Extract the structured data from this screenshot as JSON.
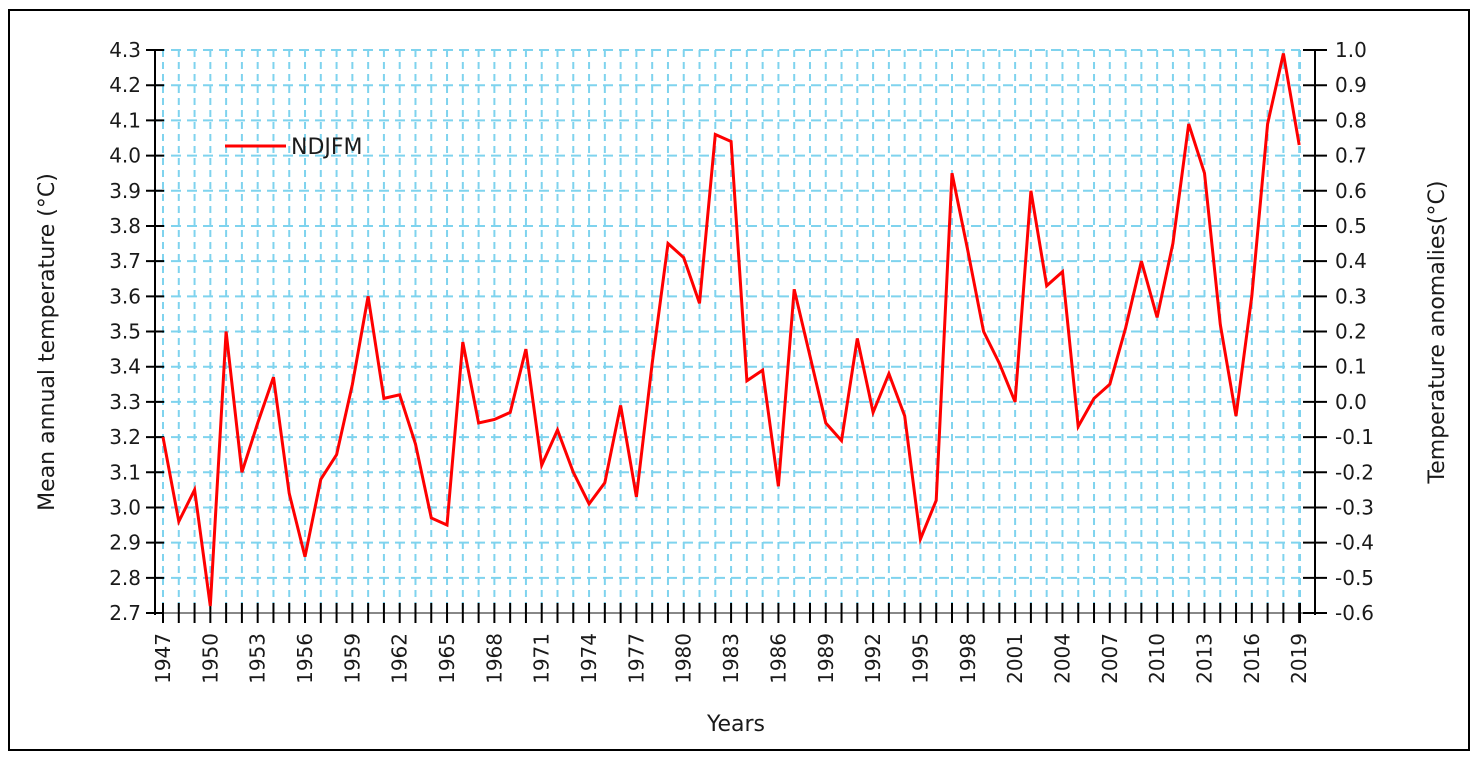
{
  "chart_data": {
    "type": "line",
    "title": "",
    "xlabel": "Years",
    "ylabel": "Mean annual temperature (°C)",
    "y2label": "Temperature anomalies(°C)",
    "ylim": [
      2.7,
      4.3
    ],
    "y2lim": [
      -0.6,
      1.0
    ],
    "xlim": [
      1947,
      2020
    ],
    "grid": true,
    "legend_position": "top-left",
    "y_ticks": [
      "4.3",
      "4.2",
      "4.1",
      "4.0",
      "3.9",
      "3.8",
      "3.7",
      "3.6",
      "3.5",
      "3.4",
      "3.3",
      "3.2",
      "3.1",
      "3.0",
      "2.9",
      "2.8",
      "2.7"
    ],
    "y2_ticks": [
      "1.0",
      "0.9",
      "0.8",
      "0.7",
      "0.6",
      "0.5",
      "0.4",
      "0.3",
      "0.2",
      "0.1",
      "0.0",
      "-0.1",
      "-0.2",
      "-0.3",
      "-0.4",
      "-0.5",
      "-0.6"
    ],
    "x_tick_labels": [
      "1947",
      "1950",
      "1953",
      "1956",
      "1959",
      "1962",
      "1965",
      "1968",
      "1971",
      "1974",
      "1977",
      "1980",
      "1983",
      "1986",
      "1989",
      "1992",
      "1995",
      "1998",
      "2001",
      "2004",
      "2007",
      "2010",
      "2013",
      "2016",
      "2019"
    ],
    "x": [
      1947,
      1948,
      1949,
      1950,
      1951,
      1952,
      1953,
      1954,
      1955,
      1956,
      1957,
      1958,
      1959,
      1960,
      1961,
      1962,
      1963,
      1964,
      1965,
      1966,
      1967,
      1968,
      1969,
      1970,
      1971,
      1972,
      1973,
      1974,
      1975,
      1976,
      1977,
      1978,
      1979,
      1980,
      1981,
      1982,
      1983,
      1984,
      1985,
      1986,
      1987,
      1988,
      1989,
      1990,
      1991,
      1992,
      1993,
      1994,
      1995,
      1996,
      1997,
      1998,
      1999,
      2000,
      2001,
      2002,
      2003,
      2004,
      2005,
      2006,
      2007,
      2008,
      2009,
      2010,
      2011,
      2012,
      2013,
      2014,
      2015,
      2016,
      2017,
      2018,
      2019
    ],
    "series": [
      {
        "name": "NDJFM",
        "color": "#ff0000",
        "values": [
          3.2,
          2.96,
          3.05,
          2.72,
          3.5,
          3.1,
          3.24,
          3.37,
          3.04,
          2.86,
          3.08,
          3.15,
          3.35,
          3.6,
          3.31,
          3.32,
          3.18,
          2.97,
          2.95,
          3.47,
          3.24,
          3.25,
          3.27,
          3.45,
          3.12,
          3.22,
          3.1,
          3.01,
          3.07,
          3.29,
          3.03,
          3.41,
          3.75,
          3.71,
          3.58,
          4.06,
          4.04,
          3.36,
          3.39,
          3.06,
          3.62,
          3.43,
          3.24,
          3.19,
          3.48,
          3.27,
          3.38,
          3.26,
          2.91,
          3.02,
          3.95,
          3.73,
          3.5,
          3.41,
          3.3,
          3.9,
          3.63,
          3.67,
          3.23,
          3.31,
          3.35,
          3.51,
          3.7,
          3.54,
          3.75,
          4.09,
          3.95,
          3.52,
          3.26,
          3.6,
          4.09,
          4.29,
          4.03
        ]
      }
    ],
    "colors": {
      "grid": "#7fd3ee",
      "axis": "#000000",
      "line": "#ff0000"
    }
  }
}
